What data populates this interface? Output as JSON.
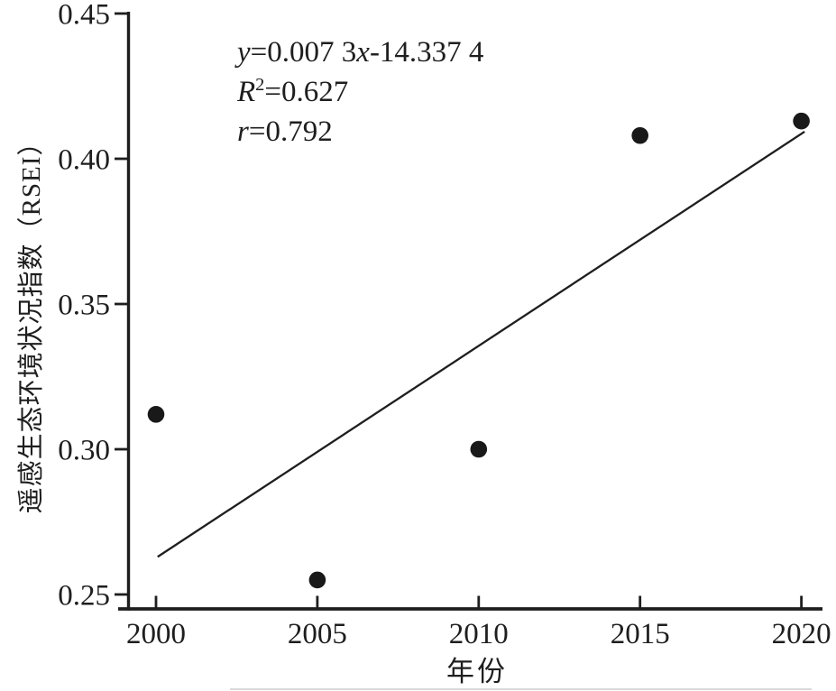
{
  "figure": {
    "bg": "#ffffff",
    "ink": "#1e1e1e"
  },
  "chart_data": {
    "type": "scatter",
    "title": "",
    "xlabel": "年份",
    "ylabel": "遥感生态环境状况指数（RSEI）",
    "x": [
      2000,
      2005,
      2010,
      2015,
      2020
    ],
    "y": [
      0.312,
      0.255,
      0.3,
      0.408,
      0.413
    ],
    "xticks": [
      2000,
      2005,
      2010,
      2015,
      2020
    ],
    "xtick_labels": [
      "2000",
      "2005",
      "2010",
      "2015",
      "2020"
    ],
    "yticks": [
      0.25,
      0.3,
      0.35,
      0.4,
      0.45
    ],
    "ytick_labels": [
      "0.25",
      "0.30",
      "0.35",
      "0.40",
      "0.45"
    ],
    "xlim": [
      1999.1,
      2020.7
    ],
    "ylim": [
      0.245,
      0.45
    ],
    "grid": false,
    "legend": false,
    "marker": {
      "shape": "circle",
      "radius_px": 9.3,
      "color": "#191919"
    },
    "trendline": {
      "slope": 0.0073,
      "intercept": -14.3374,
      "x_start": 2000.05,
      "x_end": 2020.1,
      "equation_text": "y=0.007 3x-14.337 4",
      "r_squared": 0.627,
      "r": 0.792
    },
    "annotation": {
      "l1_var1": "y",
      "l1_eq": "=0.007 3",
      "l1_var2": "x",
      "l1_rest": "-14.337 4",
      "l2_var": "R",
      "l2_sup": "2",
      "l2_rest": "=0.627",
      "l3_var": "r",
      "l3_rest": "=0.792"
    }
  }
}
